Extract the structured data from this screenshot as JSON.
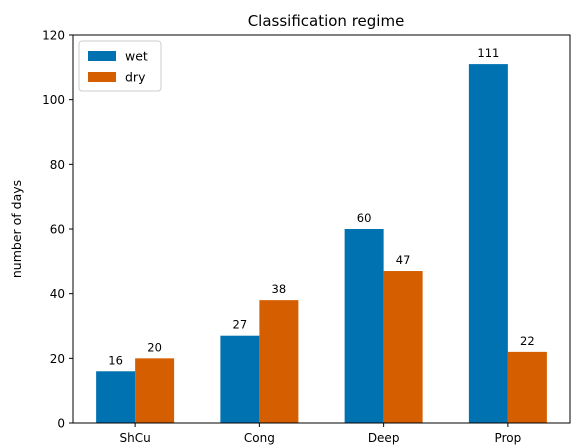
{
  "chart_data": {
    "type": "bar",
    "title": "Classification regime",
    "xlabel": "",
    "ylabel": "number of days",
    "categories": [
      "ShCu",
      "Cong",
      "Deep",
      "Prop"
    ],
    "series": [
      {
        "name": "wet",
        "values": [
          16,
          27,
          60,
          111
        ],
        "color": "#0072b2"
      },
      {
        "name": "dry",
        "values": [
          20,
          38,
          47,
          22
        ],
        "color": "#d55e00"
      }
    ],
    "ylim": [
      0,
      120
    ],
    "yticks": [
      0,
      20,
      40,
      60,
      80,
      100,
      120
    ],
    "legend_position": "top-left",
    "grid": false
  }
}
